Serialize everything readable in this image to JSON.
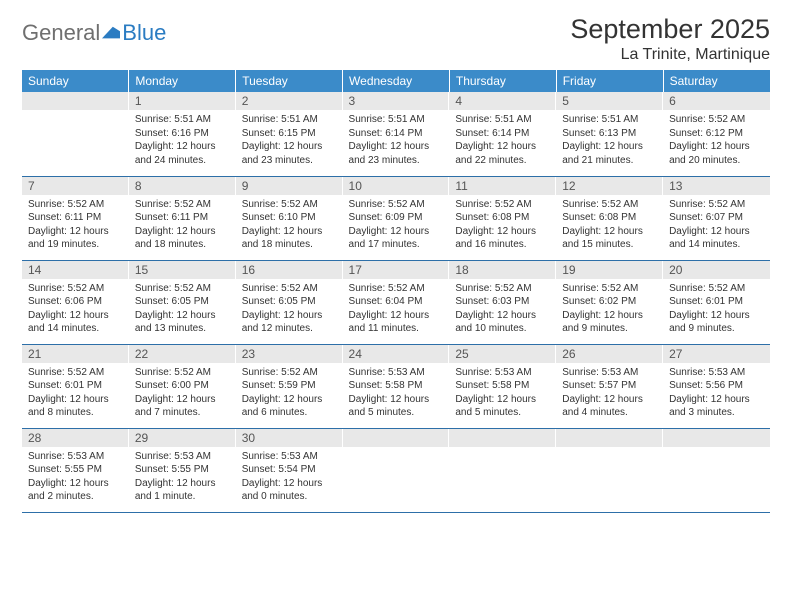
{
  "brand": {
    "general": "General",
    "blue": "Blue"
  },
  "title": "September 2025",
  "location": "La Trinite, Martinique",
  "colors": {
    "header_bg": "#3b8bc9",
    "header_text": "#ffffff",
    "daynum_bg": "#e8e8e8",
    "daynum_text": "#555555",
    "border": "#2d6fa8",
    "logo_gray": "#6f6f6f",
    "logo_blue": "#2b7cc2"
  },
  "day_headers": [
    "Sunday",
    "Monday",
    "Tuesday",
    "Wednesday",
    "Thursday",
    "Friday",
    "Saturday"
  ],
  "weeks": [
    [
      {
        "day": "",
        "lines": []
      },
      {
        "day": "1",
        "lines": [
          "Sunrise: 5:51 AM",
          "Sunset: 6:16 PM",
          "Daylight: 12 hours and 24 minutes."
        ]
      },
      {
        "day": "2",
        "lines": [
          "Sunrise: 5:51 AM",
          "Sunset: 6:15 PM",
          "Daylight: 12 hours and 23 minutes."
        ]
      },
      {
        "day": "3",
        "lines": [
          "Sunrise: 5:51 AM",
          "Sunset: 6:14 PM",
          "Daylight: 12 hours and 23 minutes."
        ]
      },
      {
        "day": "4",
        "lines": [
          "Sunrise: 5:51 AM",
          "Sunset: 6:14 PM",
          "Daylight: 12 hours and 22 minutes."
        ]
      },
      {
        "day": "5",
        "lines": [
          "Sunrise: 5:51 AM",
          "Sunset: 6:13 PM",
          "Daylight: 12 hours and 21 minutes."
        ]
      },
      {
        "day": "6",
        "lines": [
          "Sunrise: 5:52 AM",
          "Sunset: 6:12 PM",
          "Daylight: 12 hours and 20 minutes."
        ]
      }
    ],
    [
      {
        "day": "7",
        "lines": [
          "Sunrise: 5:52 AM",
          "Sunset: 6:11 PM",
          "Daylight: 12 hours and 19 minutes."
        ]
      },
      {
        "day": "8",
        "lines": [
          "Sunrise: 5:52 AM",
          "Sunset: 6:11 PM",
          "Daylight: 12 hours and 18 minutes."
        ]
      },
      {
        "day": "9",
        "lines": [
          "Sunrise: 5:52 AM",
          "Sunset: 6:10 PM",
          "Daylight: 12 hours and 18 minutes."
        ]
      },
      {
        "day": "10",
        "lines": [
          "Sunrise: 5:52 AM",
          "Sunset: 6:09 PM",
          "Daylight: 12 hours and 17 minutes."
        ]
      },
      {
        "day": "11",
        "lines": [
          "Sunrise: 5:52 AM",
          "Sunset: 6:08 PM",
          "Daylight: 12 hours and 16 minutes."
        ]
      },
      {
        "day": "12",
        "lines": [
          "Sunrise: 5:52 AM",
          "Sunset: 6:08 PM",
          "Daylight: 12 hours and 15 minutes."
        ]
      },
      {
        "day": "13",
        "lines": [
          "Sunrise: 5:52 AM",
          "Sunset: 6:07 PM",
          "Daylight: 12 hours and 14 minutes."
        ]
      }
    ],
    [
      {
        "day": "14",
        "lines": [
          "Sunrise: 5:52 AM",
          "Sunset: 6:06 PM",
          "Daylight: 12 hours and 14 minutes."
        ]
      },
      {
        "day": "15",
        "lines": [
          "Sunrise: 5:52 AM",
          "Sunset: 6:05 PM",
          "Daylight: 12 hours and 13 minutes."
        ]
      },
      {
        "day": "16",
        "lines": [
          "Sunrise: 5:52 AM",
          "Sunset: 6:05 PM",
          "Daylight: 12 hours and 12 minutes."
        ]
      },
      {
        "day": "17",
        "lines": [
          "Sunrise: 5:52 AM",
          "Sunset: 6:04 PM",
          "Daylight: 12 hours and 11 minutes."
        ]
      },
      {
        "day": "18",
        "lines": [
          "Sunrise: 5:52 AM",
          "Sunset: 6:03 PM",
          "Daylight: 12 hours and 10 minutes."
        ]
      },
      {
        "day": "19",
        "lines": [
          "Sunrise: 5:52 AM",
          "Sunset: 6:02 PM",
          "Daylight: 12 hours and 9 minutes."
        ]
      },
      {
        "day": "20",
        "lines": [
          "Sunrise: 5:52 AM",
          "Sunset: 6:01 PM",
          "Daylight: 12 hours and 9 minutes."
        ]
      }
    ],
    [
      {
        "day": "21",
        "lines": [
          "Sunrise: 5:52 AM",
          "Sunset: 6:01 PM",
          "Daylight: 12 hours and 8 minutes."
        ]
      },
      {
        "day": "22",
        "lines": [
          "Sunrise: 5:52 AM",
          "Sunset: 6:00 PM",
          "Daylight: 12 hours and 7 minutes."
        ]
      },
      {
        "day": "23",
        "lines": [
          "Sunrise: 5:52 AM",
          "Sunset: 5:59 PM",
          "Daylight: 12 hours and 6 minutes."
        ]
      },
      {
        "day": "24",
        "lines": [
          "Sunrise: 5:53 AM",
          "Sunset: 5:58 PM",
          "Daylight: 12 hours and 5 minutes."
        ]
      },
      {
        "day": "25",
        "lines": [
          "Sunrise: 5:53 AM",
          "Sunset: 5:58 PM",
          "Daylight: 12 hours and 5 minutes."
        ]
      },
      {
        "day": "26",
        "lines": [
          "Sunrise: 5:53 AM",
          "Sunset: 5:57 PM",
          "Daylight: 12 hours and 4 minutes."
        ]
      },
      {
        "day": "27",
        "lines": [
          "Sunrise: 5:53 AM",
          "Sunset: 5:56 PM",
          "Daylight: 12 hours and 3 minutes."
        ]
      }
    ],
    [
      {
        "day": "28",
        "lines": [
          "Sunrise: 5:53 AM",
          "Sunset: 5:55 PM",
          "Daylight: 12 hours and 2 minutes."
        ]
      },
      {
        "day": "29",
        "lines": [
          "Sunrise: 5:53 AM",
          "Sunset: 5:55 PM",
          "Daylight: 12 hours and 1 minute."
        ]
      },
      {
        "day": "30",
        "lines": [
          "Sunrise: 5:53 AM",
          "Sunset: 5:54 PM",
          "Daylight: 12 hours and 0 minutes."
        ]
      },
      {
        "day": "",
        "lines": []
      },
      {
        "day": "",
        "lines": []
      },
      {
        "day": "",
        "lines": []
      },
      {
        "day": "",
        "lines": []
      }
    ]
  ]
}
